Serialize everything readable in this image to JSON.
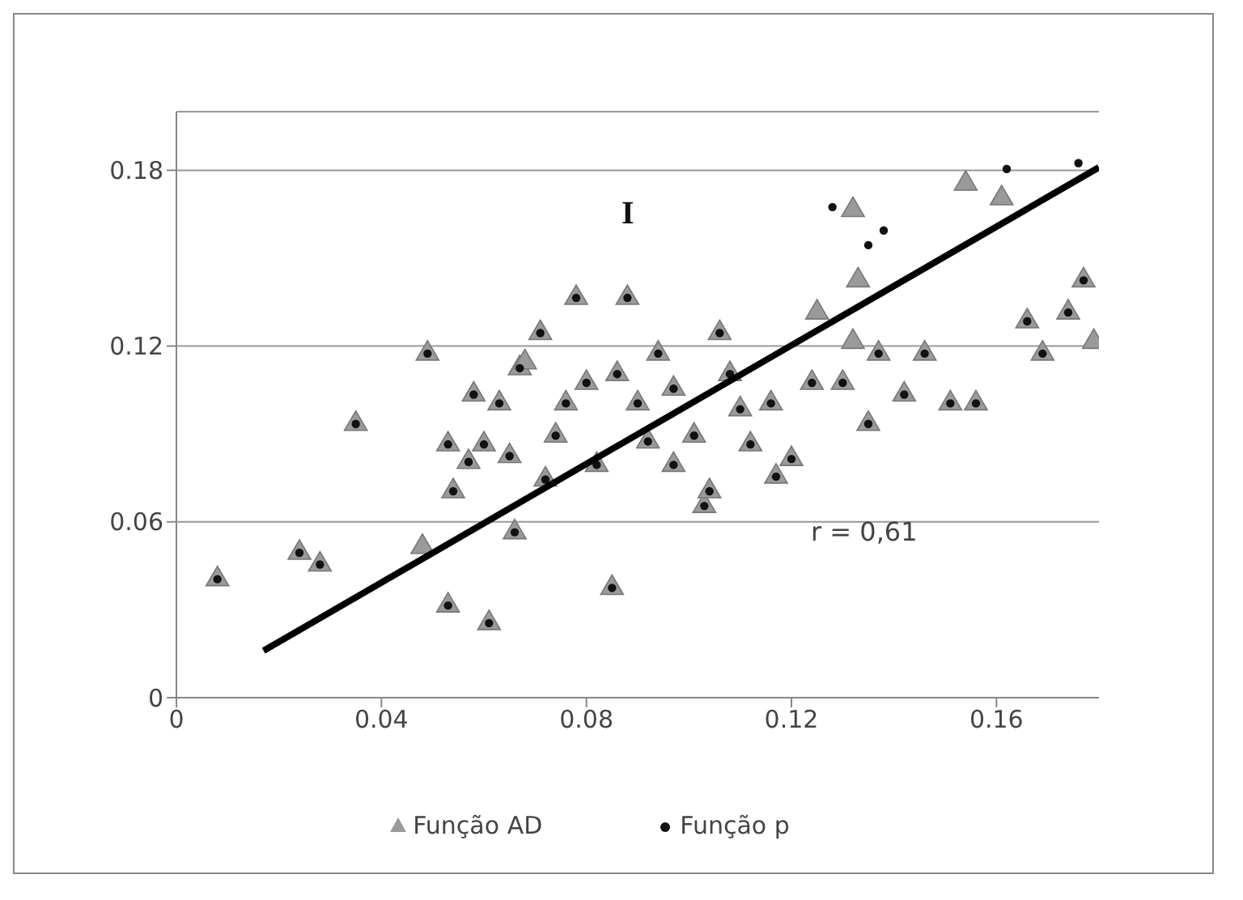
{
  "chart_data": {
    "type": "scatter",
    "xlim": [
      0,
      0.18
    ],
    "xticks": [
      0,
      0.04,
      0.08,
      0.12,
      0.16
    ],
    "ylim": [
      0,
      0.2
    ],
    "yticks": [
      0,
      0.06,
      0.12,
      0.18
    ],
    "grid": "y",
    "legend": "bottom",
    "annotations": [
      "I",
      "r = 0,61"
    ],
    "series": [
      {
        "name": "Função AD",
        "color": "#9a9a9a",
        "marker": "triangle",
        "x": [
          0.008,
          0.024,
          0.028,
          0.035,
          0.049,
          0.048,
          0.053,
          0.061,
          0.057,
          0.053,
          0.054,
          0.058,
          0.063,
          0.067,
          0.068,
          0.072,
          0.074,
          0.078,
          0.08,
          0.086,
          0.088,
          0.092,
          0.094,
          0.097,
          0.101,
          0.103,
          0.106,
          0.108,
          0.112,
          0.116,
          0.12,
          0.124,
          0.125,
          0.132,
          0.133,
          0.132,
          0.13,
          0.135,
          0.137,
          0.142,
          0.151,
          0.154,
          0.161,
          0.156,
          0.166,
          0.169,
          0.174,
          0.177,
          0.179,
          0.066,
          0.085,
          0.071,
          0.076,
          0.09,
          0.11,
          0.117,
          0.104,
          0.146,
          0.082,
          0.06,
          0.065,
          0.097
        ],
        "values": [
          0.041,
          0.05,
          0.046,
          0.094,
          0.118,
          0.052,
          0.032,
          0.026,
          0.081,
          0.087,
          0.071,
          0.104,
          0.101,
          0.113,
          0.115,
          0.075,
          0.09,
          0.137,
          0.108,
          0.111,
          0.137,
          0.088,
          0.118,
          0.106,
          0.09,
          0.066,
          0.125,
          0.111,
          0.087,
          0.101,
          0.082,
          0.108,
          0.132,
          0.167,
          0.143,
          0.122,
          0.108,
          0.094,
          0.118,
          0.104,
          0.101,
          0.176,
          0.171,
          0.101,
          0.129,
          0.118,
          0.132,
          0.143,
          0.122,
          0.057,
          0.038,
          0.125,
          0.101,
          0.101,
          0.099,
          0.076,
          0.071,
          0.118,
          0.08,
          0.087,
          0.083,
          0.08
        ]
      },
      {
        "name": "Função p",
        "color": "#111111",
        "marker": "circle",
        "x": [
          0.008,
          0.024,
          0.028,
          0.035,
          0.049,
          0.053,
          0.061,
          0.057,
          0.053,
          0.054,
          0.058,
          0.063,
          0.067,
          0.072,
          0.074,
          0.078,
          0.08,
          0.086,
          0.088,
          0.092,
          0.094,
          0.097,
          0.101,
          0.103,
          0.106,
          0.108,
          0.112,
          0.116,
          0.12,
          0.124,
          0.128,
          0.135,
          0.138,
          0.13,
          0.135,
          0.137,
          0.142,
          0.151,
          0.162,
          0.176,
          0.156,
          0.166,
          0.169,
          0.174,
          0.177,
          0.066,
          0.085,
          0.071,
          0.076,
          0.09,
          0.11,
          0.117,
          0.104,
          0.146,
          0.082,
          0.06,
          0.065,
          0.097
        ],
        "values": [
          0.041,
          0.05,
          0.046,
          0.094,
          0.118,
          0.032,
          0.026,
          0.081,
          0.087,
          0.071,
          0.104,
          0.101,
          0.113,
          0.075,
          0.09,
          0.137,
          0.108,
          0.111,
          0.137,
          0.088,
          0.118,
          0.106,
          0.09,
          0.066,
          0.125,
          0.111,
          0.087,
          0.101,
          0.082,
          0.108,
          0.168,
          0.155,
          0.16,
          0.108,
          0.094,
          0.118,
          0.104,
          0.101,
          0.181,
          0.183,
          0.101,
          0.129,
          0.118,
          0.132,
          0.143,
          0.057,
          0.038,
          0.125,
          0.101,
          0.101,
          0.099,
          0.076,
          0.071,
          0.118,
          0.08,
          0.087,
          0.083,
          0.08
        ]
      },
      {
        "type": "line",
        "color": "#000000",
        "x": [
          0.017,
          0.18
        ],
        "values": [
          0.016,
          0.181
        ]
      }
    ]
  }
}
